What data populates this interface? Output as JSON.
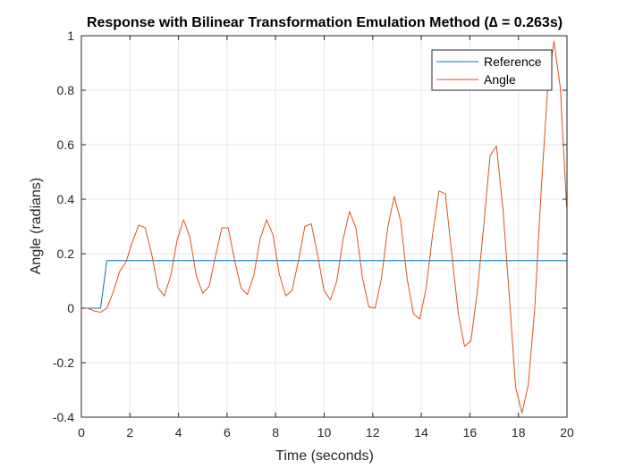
{
  "chart_data": {
    "type": "line",
    "title": "Response with Bilinear Transformation Emulation Method (∆ = 0.263s)",
    "xlabel": "Time (seconds)",
    "ylabel": "Angle (radians)",
    "xlim": [
      0,
      20
    ],
    "ylim": [
      -0.4,
      1
    ],
    "xticks": [
      "0",
      "2",
      "4",
      "6",
      "8",
      "10",
      "12",
      "14",
      "16",
      "18",
      "20"
    ],
    "yticks": [
      "-0.4",
      "-0.2",
      "0",
      "0.2",
      "0.4",
      "0.6",
      "0.8",
      "1"
    ],
    "grid": true,
    "legend_position": "top-right",
    "series": [
      {
        "name": "Reference",
        "color": "#0072BD",
        "x": [
          0,
          0.79,
          1.05,
          20
        ],
        "y": [
          0,
          0,
          0.1745,
          0.1745
        ]
      },
      {
        "name": "Angle",
        "color": "#D95319",
        "x": [
          0,
          0.263,
          0.526,
          0.789,
          1.052,
          1.315,
          1.578,
          1.841,
          2.104,
          2.367,
          2.63,
          2.893,
          3.156,
          3.419,
          3.682,
          3.945,
          4.208,
          4.471,
          4.734,
          4.997,
          5.26,
          5.523,
          5.786,
          6.049,
          6.312,
          6.575,
          6.838,
          7.101,
          7.364,
          7.627,
          7.89,
          8.153,
          8.416,
          8.679,
          8.942,
          9.205,
          9.468,
          9.731,
          9.994,
          10.257,
          10.52,
          10.783,
          11.046,
          11.309,
          11.572,
          11.835,
          12.098,
          12.361,
          12.624,
          12.887,
          13.15,
          13.413,
          13.676,
          13.939,
          14.202,
          14.465,
          14.728,
          14.991,
          15.254,
          15.517,
          15.78,
          16.043,
          16.306,
          16.569,
          16.832,
          17.095,
          17.358,
          17.621,
          17.884,
          18.147,
          18.41,
          18.673,
          18.936,
          19.199,
          19.462,
          19.725,
          19.988
        ],
        "y": [
          0,
          0.0,
          -0.01,
          -0.015,
          0.0,
          0.06,
          0.135,
          0.17,
          0.245,
          0.305,
          0.295,
          0.2,
          0.075,
          0.045,
          0.12,
          0.25,
          0.325,
          0.26,
          0.12,
          0.055,
          0.08,
          0.19,
          0.295,
          0.295,
          0.175,
          0.075,
          0.05,
          0.12,
          0.255,
          0.325,
          0.27,
          0.125,
          0.045,
          0.065,
          0.175,
          0.3,
          0.31,
          0.195,
          0.065,
          0.03,
          0.1,
          0.255,
          0.355,
          0.295,
          0.115,
          0.005,
          0.0,
          0.11,
          0.3,
          0.41,
          0.32,
          0.11,
          -0.02,
          -0.04,
          0.075,
          0.27,
          0.43,
          0.42,
          0.2,
          -0.015,
          -0.14,
          -0.12,
          0.06,
          0.3,
          0.56,
          0.595,
          0.37,
          0.05,
          -0.29,
          -0.385,
          -0.28,
          0.0,
          0.43,
          0.8,
          0.98,
          0.81,
          0.37
        ]
      }
    ]
  }
}
